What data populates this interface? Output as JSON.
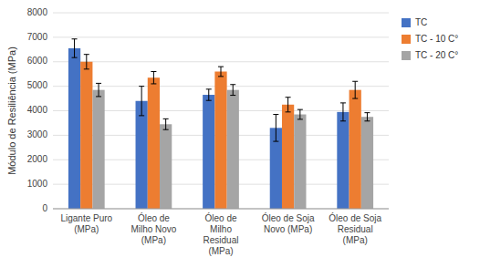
{
  "chart_data": {
    "type": "bar",
    "categories": [
      "Ligante Puro\n(MPa)",
      "Óleo de\nMilho Novo\n(MPa)",
      "Óleo de\nMilho\nResidual\n(MPa)",
      "Óleo de Soja\nNovo (MPa)",
      "Óleo de Soja\nResidual\n(MPa)"
    ],
    "series": [
      {
        "name": "TC",
        "color": "#4472C4",
        "values": [
          6550,
          4400,
          4650,
          3300,
          3950
        ],
        "errors": [
          380,
          600,
          230,
          550,
          370
        ]
      },
      {
        "name": "TC - 10 C°",
        "color": "#ED7D31",
        "values": [
          6000,
          5350,
          5600,
          4250,
          4850
        ],
        "errors": [
          300,
          250,
          200,
          300,
          350
        ]
      },
      {
        "name": "TC - 20 C°",
        "color": "#A5A5A5",
        "values": [
          4850,
          3450,
          4850,
          3850,
          3750
        ],
        "errors": [
          270,
          220,
          220,
          200,
          170
        ]
      }
    ],
    "ylabel": "Módulo de Resiliência (MPa)",
    "ylim": [
      0,
      8000
    ],
    "yticks": [
      0,
      1000,
      2000,
      3000,
      4000,
      5000,
      6000,
      7000,
      8000
    ],
    "grid": true,
    "legend": "upper right"
  }
}
